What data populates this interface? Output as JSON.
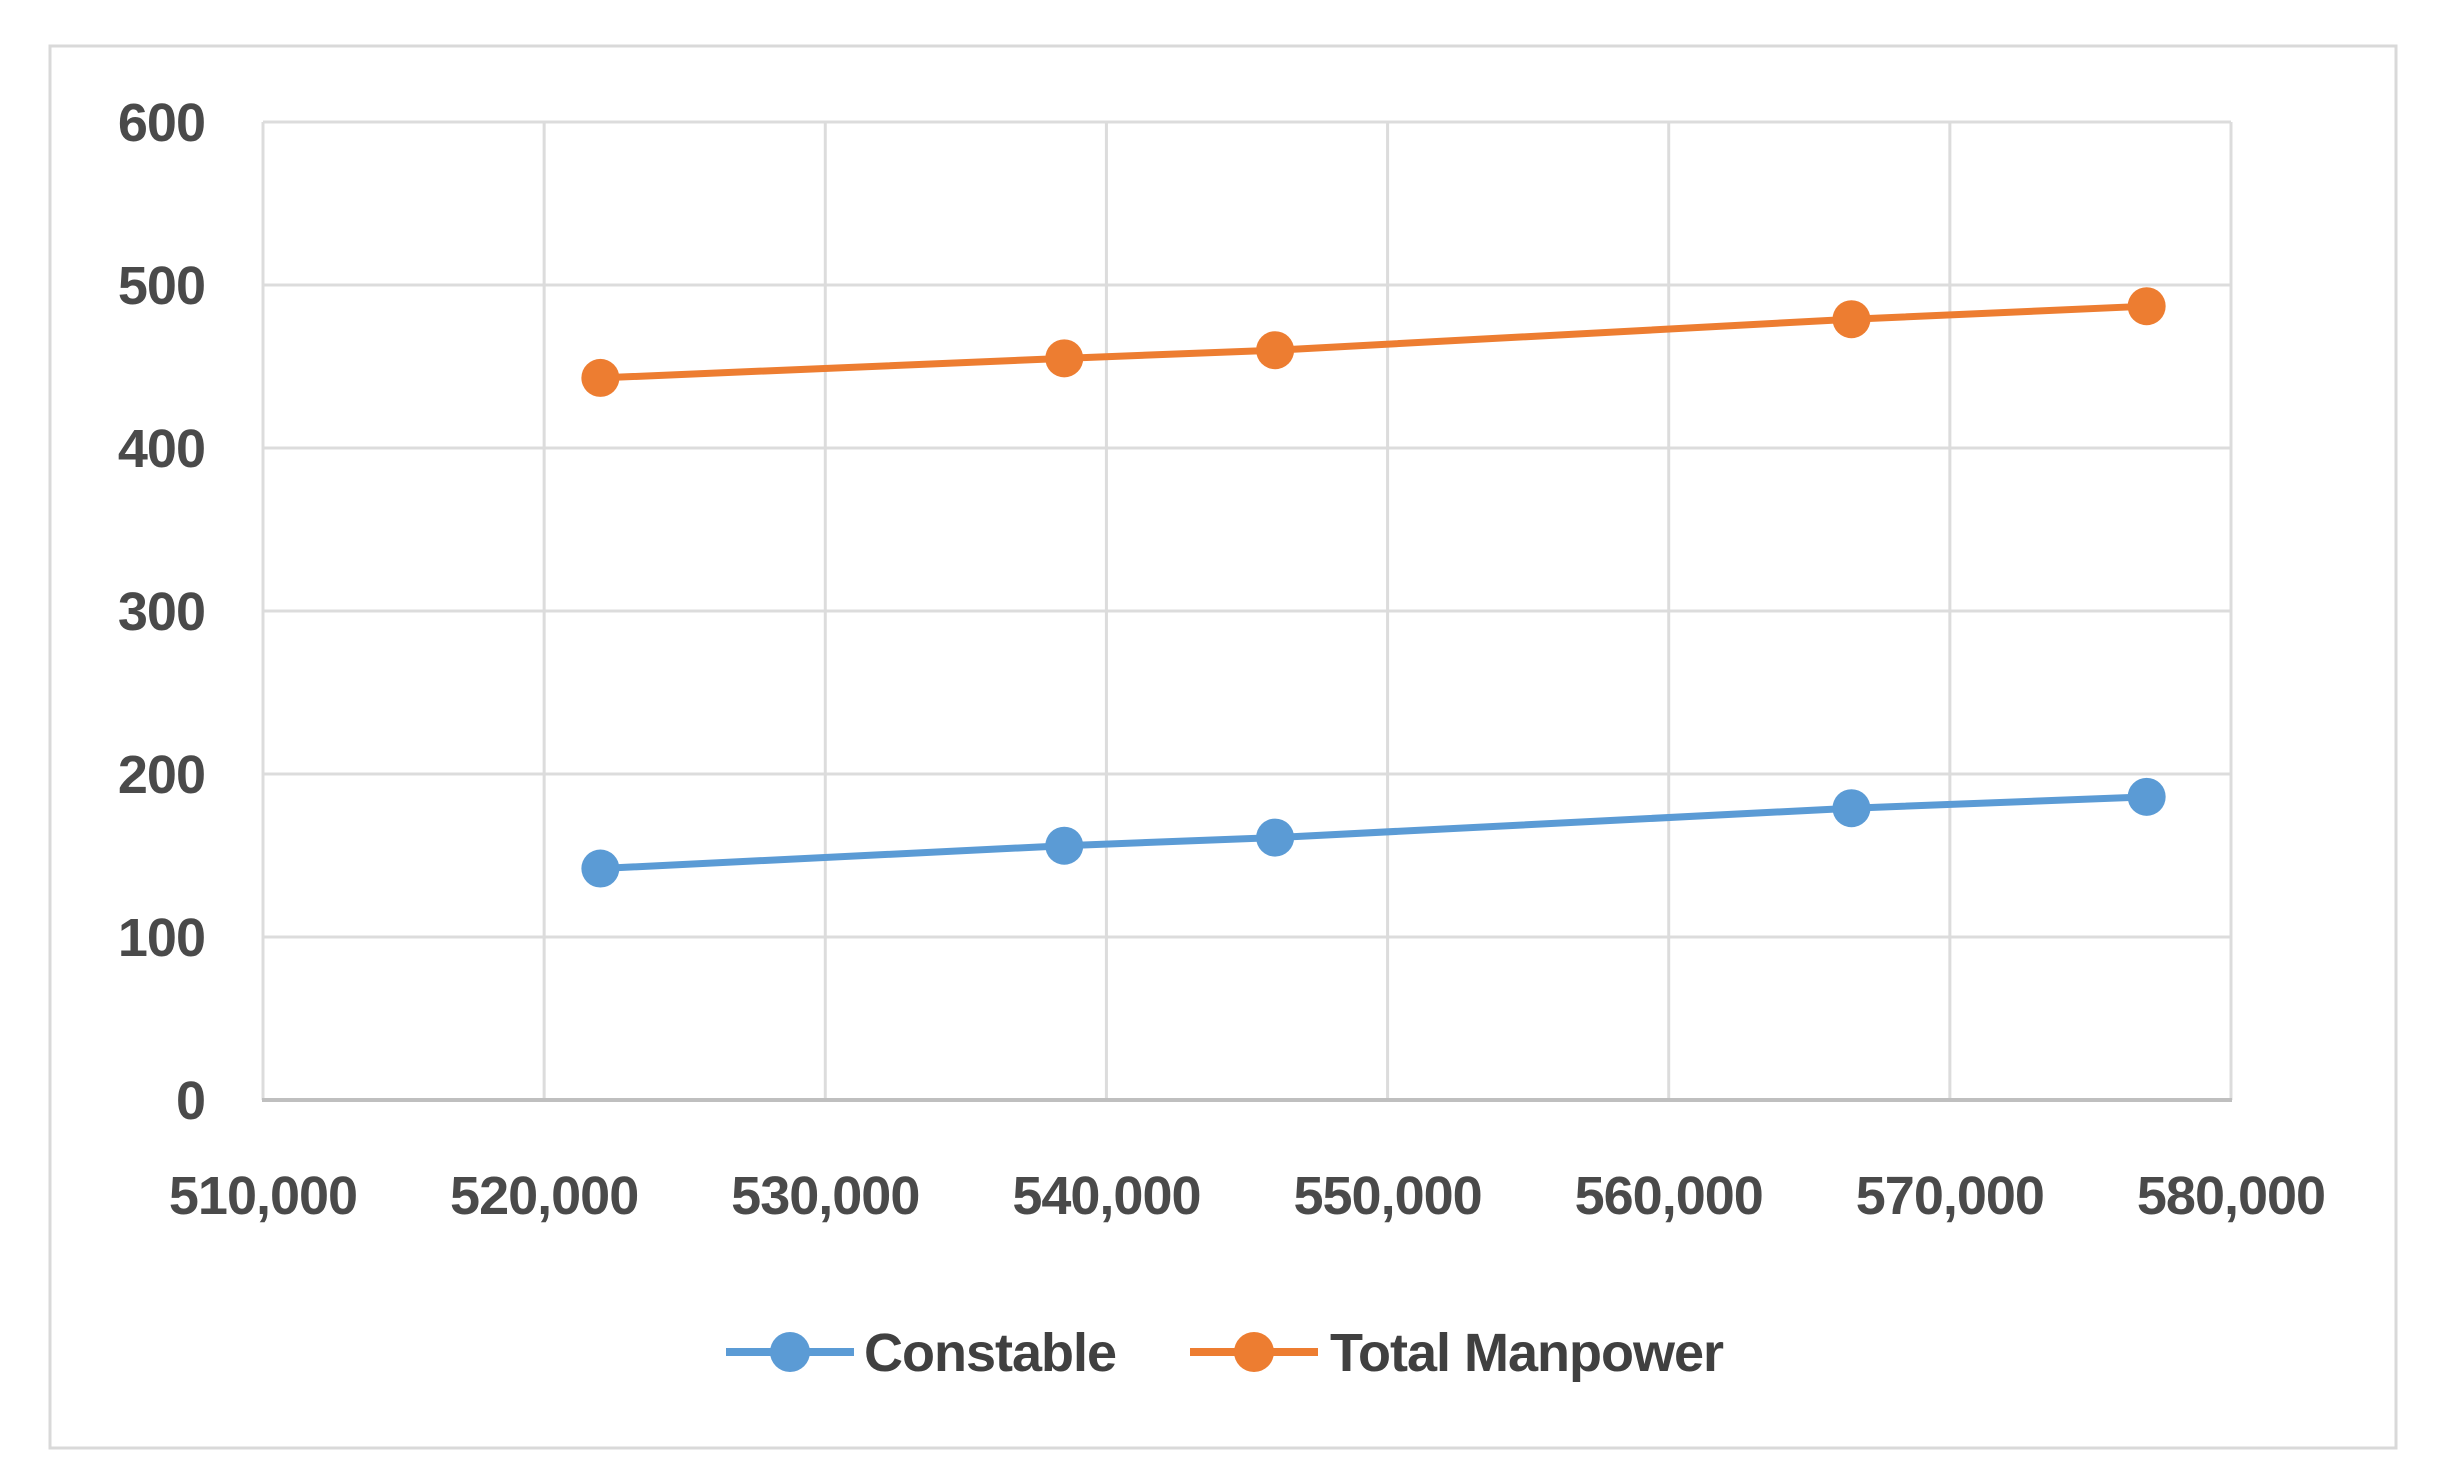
{
  "chart_data": {
    "type": "line",
    "title": "",
    "xlabel": "",
    "ylabel": "",
    "x": [
      522000,
      538500,
      546000,
      566500,
      577000
    ],
    "series": [
      {
        "name": "Constable",
        "color": "#5B9BD5",
        "marker": "circle",
        "values": [
          142,
          156,
          161,
          179,
          186
        ]
      },
      {
        "name": "Total Manpower",
        "color": "#ED7D31",
        "marker": "circle",
        "values": [
          443,
          455,
          460,
          479,
          487
        ]
      }
    ],
    "xlim": [
      510000,
      580000
    ],
    "ylim": [
      0,
      600
    ],
    "x_tick_values": [
      510000,
      520000,
      530000,
      540000,
      550000,
      560000,
      570000,
      580000
    ],
    "x_tick_labels": [
      "510,000",
      "520,000",
      "530,000",
      "540,000",
      "550,000",
      "560,000",
      "570,000",
      "580,000"
    ],
    "y_tick_values": [
      0,
      100,
      200,
      300,
      400,
      500,
      600
    ],
    "y_tick_labels": [
      "0",
      "100",
      "200",
      "300",
      "400",
      "500",
      "600"
    ],
    "grid": true,
    "legend_position": "bottom-center"
  },
  "legend": {
    "items": [
      {
        "label": "Constable",
        "color": "#5B9BD5"
      },
      {
        "label": "Total Manpower",
        "color": "#ED7D31"
      }
    ]
  },
  "colors": {
    "background": "#FFFFFF",
    "chart_border": "#D9D9D9",
    "gridline": "#DCDCDC",
    "axis_line": "#BFBFBF",
    "tick_text": "#4A4A4A",
    "legend_text": "#404040"
  }
}
